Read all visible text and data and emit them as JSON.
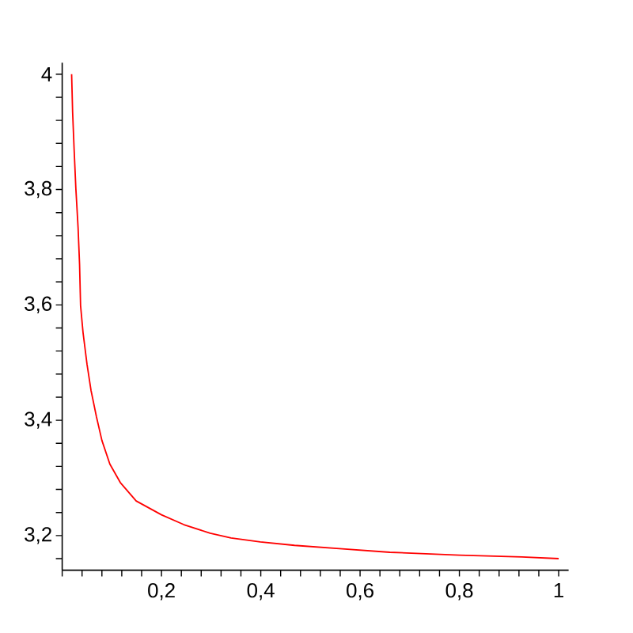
{
  "chart_data": {
    "type": "line",
    "x": [
      0.019,
      0.021,
      0.024,
      0.0275,
      0.032,
      0.035,
      0.037,
      0.042,
      0.05,
      0.058,
      0.069,
      0.08,
      0.096,
      0.117,
      0.149,
      0.2,
      0.245,
      0.298,
      0.34,
      0.399,
      0.468,
      0.564,
      0.66,
      0.8,
      0.926,
      1.0
    ],
    "values": [
      4.0,
      3.934,
      3.87,
      3.802,
      3.734,
      3.67,
      3.599,
      3.552,
      3.497,
      3.452,
      3.406,
      3.365,
      3.324,
      3.292,
      3.26,
      3.236,
      3.219,
      3.204,
      3.196,
      3.189,
      3.183,
      3.177,
      3.171,
      3.166,
      3.163,
      3.16
    ],
    "color": "#ff0000",
    "xlim": [
      0,
      1.02
    ],
    "ylim": [
      3.14,
      4.02
    ],
    "xticks": [
      {
        "value": 0,
        "label": null
      },
      {
        "value": 0.04,
        "label": null
      },
      {
        "value": 0.08,
        "label": null
      },
      {
        "value": 0.12,
        "label": null
      },
      {
        "value": 0.16,
        "label": null
      },
      {
        "value": 0.2,
        "label": "0,2"
      },
      {
        "value": 0.24,
        "label": null
      },
      {
        "value": 0.28,
        "label": null
      },
      {
        "value": 0.32,
        "label": null
      },
      {
        "value": 0.36,
        "label": null
      },
      {
        "value": 0.4,
        "label": "0,4"
      },
      {
        "value": 0.44,
        "label": null
      },
      {
        "value": 0.48,
        "label": null
      },
      {
        "value": 0.52,
        "label": null
      },
      {
        "value": 0.56,
        "label": null
      },
      {
        "value": 0.6,
        "label": "0,6"
      },
      {
        "value": 0.64,
        "label": null
      },
      {
        "value": 0.68,
        "label": null
      },
      {
        "value": 0.72,
        "label": null
      },
      {
        "value": 0.76,
        "label": null
      },
      {
        "value": 0.8,
        "label": "0,8"
      },
      {
        "value": 0.84,
        "label": null
      },
      {
        "value": 0.88,
        "label": null
      },
      {
        "value": 0.92,
        "label": null
      },
      {
        "value": 0.96,
        "label": null
      },
      1
    ],
    "yticks": [
      {
        "value": 3.16,
        "label": null
      },
      {
        "value": 3.2,
        "label": "3,2"
      },
      {
        "value": 3.24,
        "label": null
      },
      {
        "value": 3.28,
        "label": null
      },
      {
        "value": 3.32,
        "label": null
      },
      {
        "value": 3.36,
        "label": null
      },
      {
        "value": 3.4,
        "label": "3,4"
      },
      {
        "value": 3.44,
        "label": null
      },
      {
        "value": 3.48,
        "label": null
      },
      {
        "value": 3.52,
        "label": null
      },
      {
        "value": 3.56,
        "label": null
      },
      {
        "value": 3.6,
        "label": "3,6"
      },
      {
        "value": 3.64,
        "label": null
      },
      {
        "value": 3.68,
        "label": null
      },
      {
        "value": 3.72,
        "label": null
      },
      {
        "value": 3.76,
        "label": null
      },
      {
        "value": 3.8,
        "label": "3,8"
      },
      {
        "value": 3.84,
        "label": null
      },
      {
        "value": 3.88,
        "label": null
      },
      {
        "value": 3.92,
        "label": null
      },
      {
        "value": 3.96,
        "label": null
      },
      4
    ]
  }
}
